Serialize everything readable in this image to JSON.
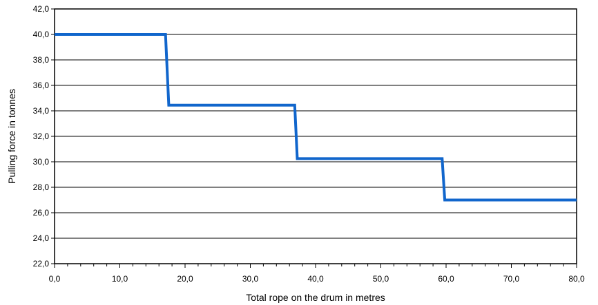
{
  "chart_data": {
    "type": "line",
    "title": "",
    "xlabel": "Total rope on the drum in metres",
    "ylabel": "Pulling force in tonnes",
    "xlim": [
      0,
      80
    ],
    "ylim": [
      22,
      42
    ],
    "x_major_ticks": [
      0,
      10,
      20,
      30,
      40,
      50,
      60,
      70,
      80
    ],
    "x_minor_step": 2,
    "y_ticks": [
      22,
      24,
      26,
      28,
      30,
      32,
      34,
      36,
      38,
      40,
      42
    ],
    "decimal_separator": ",",
    "grid": "horizontal",
    "legend": "none",
    "series": [
      {
        "color": "#1166cc",
        "points": [
          [
            0,
            40.0
          ],
          [
            17.0,
            40.0
          ],
          [
            17.5,
            34.45
          ],
          [
            36.8,
            34.45
          ],
          [
            37.2,
            30.25
          ],
          [
            59.4,
            30.25
          ],
          [
            59.8,
            27.0
          ],
          [
            80.0,
            27.0
          ]
        ]
      }
    ]
  }
}
